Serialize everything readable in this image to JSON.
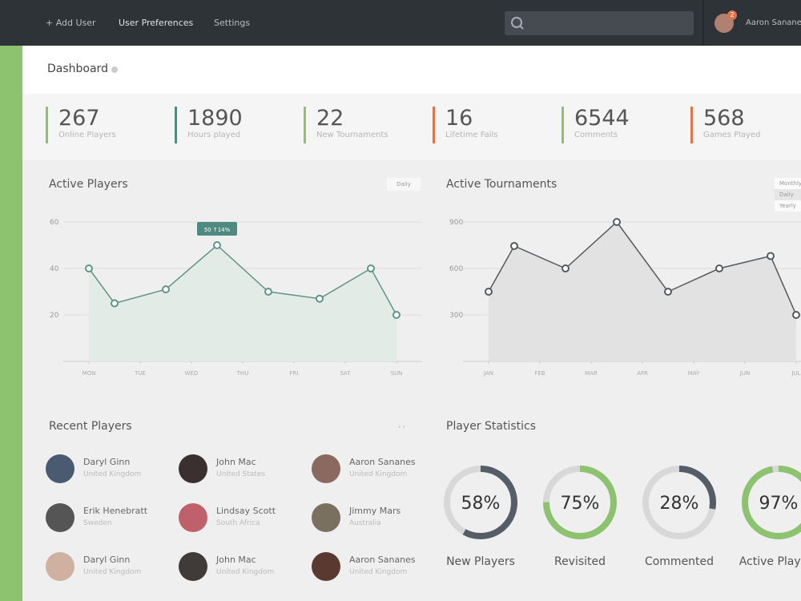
{
  "topbar": {
    "nav": [
      "+ Add User",
      "User Preferences",
      "Settings"
    ],
    "user_name": "Aaron Sananes",
    "badge": "2"
  },
  "header": {
    "title": "Dashboard"
  },
  "stats": [
    {
      "value": "267",
      "label": "Online Players",
      "color": "#8dc26f"
    },
    {
      "value": "1890",
      "label": "Hours played",
      "color": "#4f8a80"
    },
    {
      "value": "22",
      "label": "New Tournaments",
      "color": "#8dc26f"
    },
    {
      "value": "16",
      "label": "Lifetime Fails",
      "color": "#e0734a"
    },
    {
      "value": "6544",
      "label": "Comments",
      "color": "#8dc26f"
    },
    {
      "value": "568",
      "label": "Games Played",
      "color": "#e0734a"
    }
  ],
  "chart_data": [
    {
      "type": "line",
      "title": "Active Players",
      "dropdown": [
        "Daily"
      ],
      "x": [
        0,
        0.5,
        1.5,
        2.5,
        3.5,
        4.5,
        5.5,
        6
      ],
      "series": [
        {
          "name": "Active Players",
          "color": "#5f9488",
          "fill": "#e3ebe7",
          "values": [
            40,
            25,
            31,
            50,
            30,
            27,
            40,
            20
          ]
        }
      ],
      "xlim": [
        -0.5,
        6.5
      ],
      "xticks": [
        {
          "value": 0,
          "label": "MON"
        },
        {
          "value": 1,
          "label": "TUE"
        },
        {
          "value": 2,
          "label": "WED"
        },
        {
          "value": 3,
          "label": "THU"
        },
        {
          "value": 4,
          "label": "FRI"
        },
        {
          "value": 5,
          "label": "SAT"
        },
        {
          "value": 6,
          "label": "SUN"
        }
      ],
      "ylim": [
        0,
        60
      ],
      "yticks": [
        20,
        40,
        60
      ],
      "grid": true,
      "annotation": {
        "index": 3,
        "text": "50 ↑14%"
      }
    },
    {
      "type": "line",
      "title": "Active Tournaments",
      "dropdown": [
        "Monthly",
        "Daily",
        "Yearly"
      ],
      "x": [
        0,
        0.5,
        1.5,
        2.5,
        3.5,
        4.5,
        5.5,
        6
      ],
      "series": [
        {
          "name": "Active Tournaments",
          "color": "#555a5e",
          "fill": "#e2e2e2",
          "values": [
            450,
            745,
            600,
            900,
            450,
            600,
            680,
            300
          ]
        }
      ],
      "xlim": [
        -0.5,
        6.5
      ],
      "xticks": [
        {
          "value": 0,
          "label": "JAN"
        },
        {
          "value": 1,
          "label": "FEB"
        },
        {
          "value": 2,
          "label": "MAR"
        },
        {
          "value": 3,
          "label": "APR"
        },
        {
          "value": 4,
          "label": "MAY"
        },
        {
          "value": 5,
          "label": "JUN"
        },
        {
          "value": 6,
          "label": "JUL"
        }
      ],
      "ylim": [
        0,
        900
      ],
      "yticks": [
        300,
        600,
        900
      ],
      "grid": true
    }
  ],
  "recent_players": {
    "title": "Recent Players",
    "players": [
      {
        "name": "Daryl Ginn",
        "country": "United Kingdom"
      },
      {
        "name": "John Mac",
        "country": "United States"
      },
      {
        "name": "Aaron Sananes",
        "country": "United Kingdom"
      },
      {
        "name": "Erik Henebratt",
        "country": "Sweden"
      },
      {
        "name": "Lindsay Scott",
        "country": "South Africa"
      },
      {
        "name": "Jimmy Mars",
        "country": "Australia"
      },
      {
        "name": "Daryl Ginn",
        "country": "United Kingdom"
      },
      {
        "name": "John Mac",
        "country": "United Kingdom"
      },
      {
        "name": "Aaron Sananes",
        "country": "United Kingdom"
      }
    ]
  },
  "player_statistics": {
    "title": "Player Statistics",
    "categories": [
      "New Players",
      "Revisited",
      "Commented",
      "Active Players"
    ],
    "values": [
      58,
      75,
      28,
      97
    ],
    "value_labels": [
      "58%",
      "75%",
      "28%",
      "97%"
    ],
    "colors": [
      "#555e66",
      "#8dc26f",
      "#555e66",
      "#8dc26f"
    ]
  }
}
